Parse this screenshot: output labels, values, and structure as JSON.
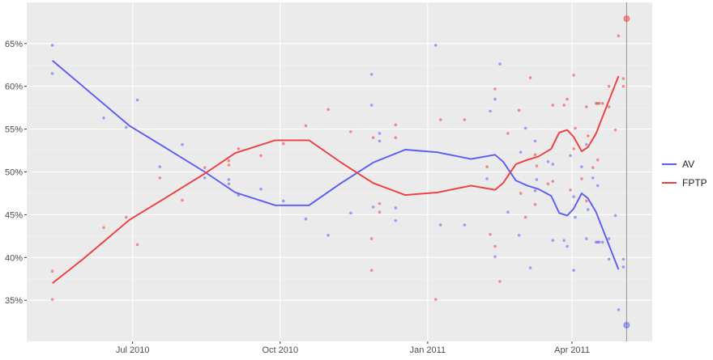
{
  "chart_data": {
    "type": "scatter",
    "title": "",
    "xlabel": "",
    "ylabel": "",
    "x_type": "date",
    "xlim": [
      "2010-04-26",
      "2011-05-21"
    ],
    "ylim": [
      30.2,
      69.8
    ],
    "x_ticks": [
      {
        "date": "2010-07-01",
        "label": "Jul 2010"
      },
      {
        "date": "2010-10-01",
        "label": "Oct 2010"
      },
      {
        "date": "2011-01-01",
        "label": "Jan 2011"
      },
      {
        "date": "2011-04-01",
        "label": "Apr 2011"
      }
    ],
    "y_ticks": [
      {
        "value": 35,
        "label": "35%"
      },
      {
        "value": 40,
        "label": "40%"
      },
      {
        "value": 45,
        "label": "45%"
      },
      {
        "value": 50,
        "label": "50%"
      },
      {
        "value": 55,
        "label": "55%"
      },
      {
        "value": 60,
        "label": "60%"
      },
      {
        "value": 65,
        "label": "65%"
      }
    ],
    "grid": true,
    "legend_position": "right",
    "vertical_line": "2011-05-05",
    "colors": {
      "AV": "#5b5bf5",
      "FPTP": "#f03c3c",
      "panel": "#ebebeb",
      "grid": "#ffffff",
      "vline": "#7f7f7f"
    },
    "polls": [
      [
        "2010-05-12",
        64.8,
        35.1
      ],
      [
        "2010-05-12",
        61.5,
        38.4
      ],
      [
        "2010-06-13",
        56.3,
        43.5
      ],
      [
        "2010-06-27",
        55.2,
        44.7
      ],
      [
        "2010-07-04",
        58.4,
        41.5
      ],
      [
        "2010-07-18",
        50.6,
        49.3
      ],
      [
        "2010-08-01",
        53.2,
        46.7
      ],
      [
        "2010-08-15",
        49.3,
        50.5
      ],
      [
        "2010-08-30",
        48.6,
        51.3
      ],
      [
        "2010-08-30",
        49.1,
        50.8
      ],
      [
        "2010-09-05",
        47.3,
        52.7
      ],
      [
        "2010-09-19",
        48.0,
        51.9
      ],
      [
        "2010-10-03",
        46.6,
        53.3
      ],
      [
        "2010-10-17",
        44.5,
        55.4
      ],
      [
        "2010-10-31",
        42.6,
        57.3
      ],
      [
        "2010-11-14",
        45.2,
        54.7
      ],
      [
        "2010-11-27",
        61.4,
        38.5
      ],
      [
        "2010-11-27",
        57.8,
        42.2
      ],
      [
        "2010-11-28",
        45.9,
        54.0
      ],
      [
        "2010-12-02",
        54.5,
        46.3
      ],
      [
        "2010-12-02",
        53.6,
        45.3
      ],
      [
        "2010-12-12",
        45.8,
        54.0
      ],
      [
        "2010-12-12",
        44.3,
        55.5
      ],
      [
        "2011-01-06",
        64.8,
        35.1
      ],
      [
        "2011-01-09",
        43.8,
        56.1
      ],
      [
        "2011-01-24",
        43.8,
        56.1
      ],
      [
        "2011-02-07",
        49.2,
        50.6
      ],
      [
        "2011-02-09",
        57.1,
        42.7
      ],
      [
        "2011-02-12",
        58.5,
        41.3
      ],
      [
        "2011-02-12",
        40.1,
        59.7
      ],
      [
        "2011-02-15",
        62.6,
        37.2
      ],
      [
        "2011-02-20",
        45.3,
        54.5
      ],
      [
        "2011-02-27",
        42.6,
        57.2
      ],
      [
        "2011-02-28",
        52.3,
        47.5
      ],
      [
        "2011-03-03",
        55.1,
        44.7
      ],
      [
        "2011-03-06",
        38.8,
        61.0
      ],
      [
        "2011-03-09",
        53.6,
        46.2
      ],
      [
        "2011-03-09",
        47.8,
        52.0
      ],
      [
        "2011-03-10",
        49.1,
        50.7
      ],
      [
        "2011-03-17",
        51.2,
        48.6
      ],
      [
        "2011-03-20",
        50.9,
        48.9
      ],
      [
        "2011-03-20",
        42.0,
        57.8
      ],
      [
        "2011-03-27",
        42.0,
        57.8
      ],
      [
        "2011-03-29",
        41.3,
        58.5
      ],
      [
        "2011-03-31",
        51.9,
        47.9
      ],
      [
        "2011-04-02",
        47.1,
        52.7
      ],
      [
        "2011-04-02",
        38.5,
        61.3
      ],
      [
        "2011-04-03",
        44.7,
        55.1
      ],
      [
        "2011-04-07",
        50.6,
        49.2
      ],
      [
        "2011-04-10",
        42.2,
        57.6
      ],
      [
        "2011-04-10",
        53.2,
        46.6
      ],
      [
        "2011-04-11",
        45.6,
        54.2
      ],
      [
        "2011-04-14",
        49.3,
        50.5
      ],
      [
        "2011-04-16",
        41.8,
        58.0
      ],
      [
        "2011-04-17",
        48.4,
        51.4
      ],
      [
        "2011-04-17",
        41.8,
        58.0
      ],
      [
        "2011-04-18",
        41.8,
        58.0
      ],
      [
        "2011-04-20",
        41.8,
        58.0
      ],
      [
        "2011-04-24",
        42.2,
        57.6
      ],
      [
        "2011-04-24",
        39.8,
        60.0
      ],
      [
        "2011-04-28",
        44.9,
        54.9
      ],
      [
        "2011-04-30",
        33.9,
        65.9
      ],
      [
        "2011-05-03",
        39.8,
        60.0
      ],
      [
        "2011-05-03",
        38.9,
        60.9
      ]
    ],
    "result": {
      "date": "2011-05-05",
      "AV": 32.1,
      "FPTP": 67.9
    },
    "series": [
      {
        "name": "AV",
        "x": [
          "2010-05-12",
          "2010-05-31",
          "2010-06-29",
          "2010-07-20",
          "2010-08-15",
          "2010-09-03",
          "2010-09-28",
          "2010-10-19",
          "2010-11-08",
          "2010-11-28",
          "2010-12-18",
          "2011-01-07",
          "2011-01-28",
          "2011-02-12",
          "2011-02-17",
          "2011-02-25",
          "2011-03-04",
          "2011-03-11",
          "2011-03-19",
          "2011-03-24",
          "2011-03-29",
          "2011-04-02",
          "2011-04-07",
          "2011-04-11",
          "2011-04-16",
          "2011-04-30"
        ],
        "values": [
          63.0,
          60.0,
          55.4,
          53.0,
          50.0,
          47.6,
          46.1,
          46.1,
          48.7,
          51.1,
          52.6,
          52.3,
          51.5,
          52.0,
          51.2,
          49.0,
          48.4,
          48.0,
          47.2,
          45.2,
          44.9,
          45.7,
          47.5,
          46.9,
          45.3,
          38.6
        ]
      },
      {
        "name": "FPTP",
        "x": [
          "2010-05-12",
          "2010-05-31",
          "2010-06-29",
          "2010-07-20",
          "2010-08-15",
          "2010-09-03",
          "2010-09-28",
          "2010-10-19",
          "2010-11-08",
          "2010-11-28",
          "2010-12-18",
          "2011-01-07",
          "2011-01-28",
          "2011-02-12",
          "2011-02-17",
          "2011-02-25",
          "2011-03-04",
          "2011-03-11",
          "2011-03-19",
          "2011-03-24",
          "2011-03-29",
          "2011-04-02",
          "2011-04-07",
          "2011-04-11",
          "2011-04-16",
          "2011-04-30"
        ],
        "values": [
          37.0,
          39.8,
          44.4,
          46.8,
          49.8,
          52.2,
          53.7,
          53.7,
          51.1,
          48.7,
          47.3,
          47.6,
          48.4,
          47.9,
          48.7,
          50.9,
          51.4,
          51.8,
          52.7,
          54.6,
          54.9,
          54.1,
          52.4,
          52.9,
          54.5,
          61.2
        ]
      }
    ]
  }
}
